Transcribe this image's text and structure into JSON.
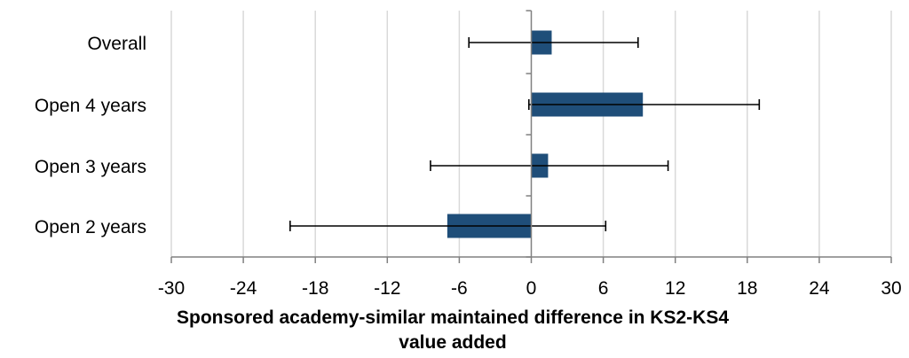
{
  "chart_data": {
    "type": "bar",
    "orientation": "horizontal",
    "categories": [
      "Overall",
      "Open 4 years",
      "Open 3 years",
      "Open 2 years"
    ],
    "values": [
      1.7,
      9.3,
      1.4,
      -7.0
    ],
    "error_low": [
      -5.2,
      -0.2,
      -8.4,
      -20.1
    ],
    "error_high": [
      8.9,
      19.0,
      11.4,
      6.2
    ],
    "xlim": [
      -30,
      30
    ],
    "xticks": [
      "-30",
      "-24",
      "-18",
      "-12",
      "-6",
      "0",
      "6",
      "12",
      "18",
      "24",
      "30"
    ],
    "xlabel": "Sponsored academy-similar  maintained difference in KS2-KS4\nvalue added",
    "grid": true,
    "bar_color": "#1f4e79"
  }
}
